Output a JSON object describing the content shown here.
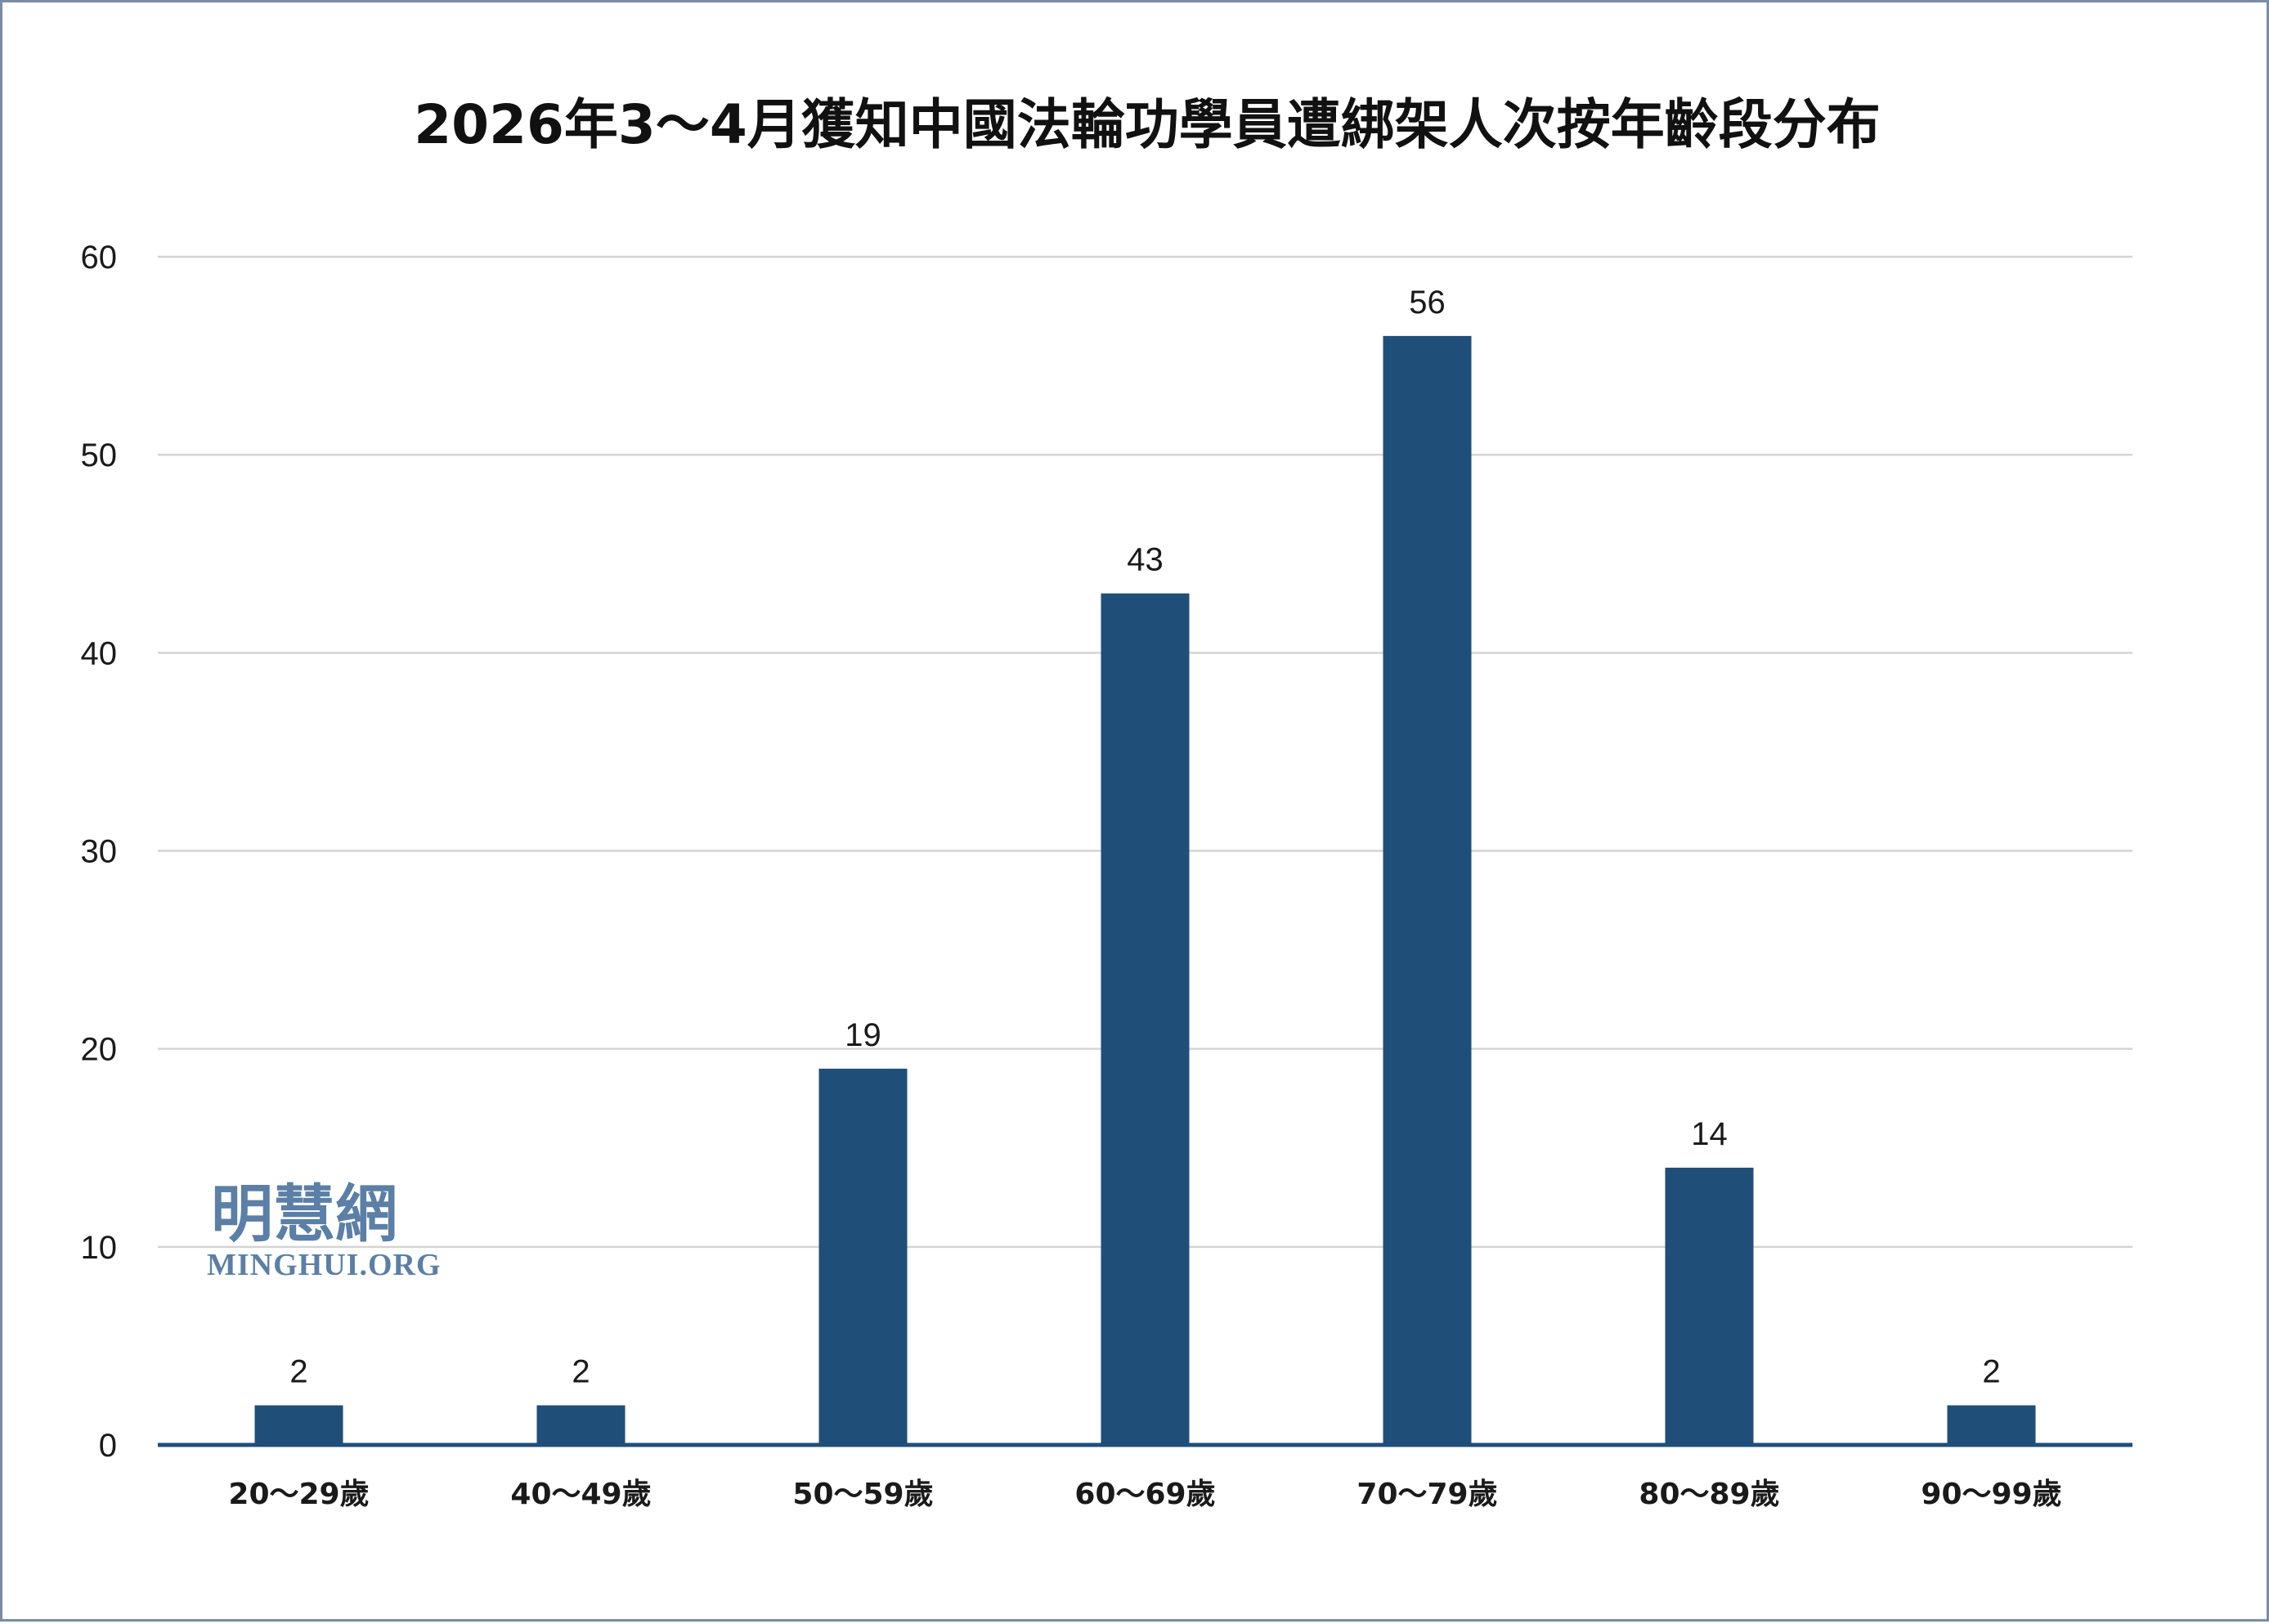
{
  "chart_data": {
    "type": "bar",
    "title": "2026年3～4月獲知中國法輪功學員遭綁架人次按年齡段分布",
    "categories": [
      "20～29歲",
      "40～49歲",
      "50～59歲",
      "60～69歲",
      "70～79歲",
      "80～89歲",
      "90～99歲"
    ],
    "values": [
      2,
      2,
      19,
      43,
      56,
      14,
      2
    ],
    "ylim": [
      0,
      60
    ],
    "yticks": [
      0,
      10,
      20,
      30,
      40,
      50,
      60
    ],
    "grid": true,
    "legend": "none",
    "xlabel": "",
    "ylabel": ""
  },
  "colors": {
    "bar": "#1f4e79",
    "grid": "#d4d4d4",
    "axis": "#1f4e79",
    "watermark": "#5b7fa6",
    "border": "#7a8ca3"
  },
  "watermark": {
    "chinese": "明慧網",
    "english": "MINGHUI.ORG"
  }
}
